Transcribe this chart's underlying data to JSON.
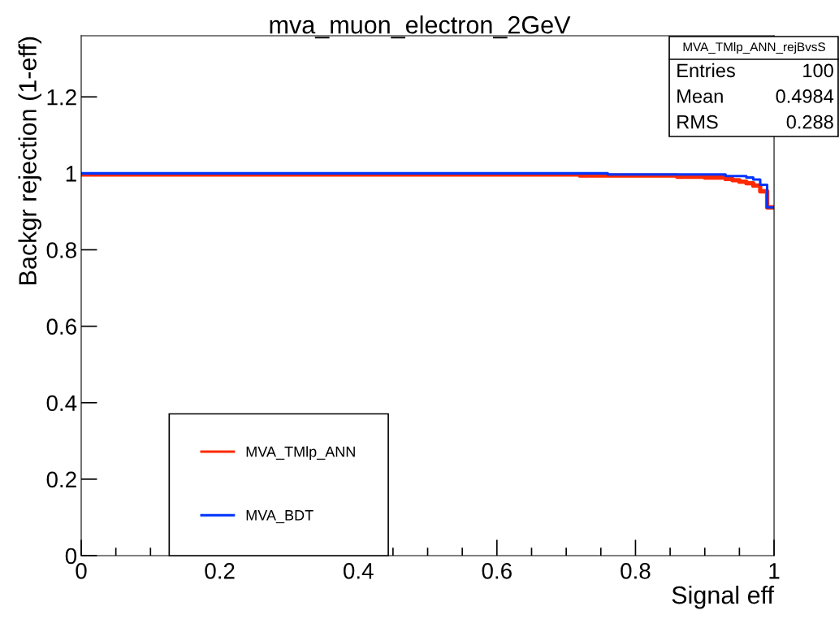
{
  "chart_data": {
    "type": "step",
    "title": "mva_muon_electron_2GeV",
    "xlabel": "Signal eff",
    "ylabel": "Backgr rejection (1-eff)",
    "series": [
      {
        "name": "MVA_TMlp_ANN",
        "color": "#ff2a00",
        "x": [
          0,
          0.72,
          0.86,
          0.9,
          0.93,
          0.94,
          0.95,
          0.96,
          0.97,
          0.98,
          0.99,
          1.0
        ],
        "values": [
          0.997,
          0.994,
          0.991,
          0.989,
          0.985,
          0.982,
          0.978,
          0.974,
          0.968,
          0.953,
          0.911,
          0.911
        ]
      },
      {
        "name": "MVA_BDT",
        "color": "#0033ff",
        "x": [
          0,
          0.76,
          0.93,
          0.96,
          0.97,
          0.98,
          0.99,
          1.0
        ],
        "values": [
          1.0,
          0.997,
          0.993,
          0.989,
          0.984,
          0.97,
          0.911,
          0.911
        ]
      }
    ],
    "xlim": [
      0,
      1
    ],
    "ylim": [
      0,
      1.36
    ],
    "xticks": [
      0,
      0.2,
      0.4,
      0.6,
      0.8,
      1
    ],
    "yticks": [
      0,
      0.2,
      0.4,
      0.6,
      0.8,
      1,
      1.2
    ],
    "legend": "bottom left",
    "grid": false,
    "annotations": [
      "MVA_TMlp_ANN_rejBvsS",
      "Entries",
      "100",
      "Mean",
      "0.4984",
      "RMS",
      "0.288"
    ]
  }
}
